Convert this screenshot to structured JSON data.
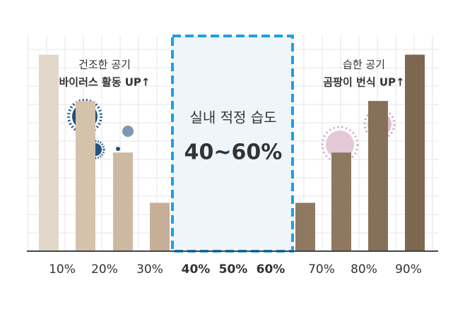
{
  "chart_data": {
    "type": "bar",
    "annotations": {
      "left": [
        "건조한 공기",
        "바이러스 활동 UP↑"
      ],
      "right": [
        "습한 공기",
        "곰팡이 번식 UP↑"
      ],
      "center_title": "실내 적정 습도",
      "center_value": "40~60%"
    },
    "x_labels": [
      "10%",
      "20%",
      "30%",
      "40%",
      "50%",
      "60%",
      "70%",
      "80%",
      "90%"
    ],
    "values": [
      148,
      113,
      74,
      36,
      36,
      74,
      113,
      148
    ],
    "colors": [
      "#e2d8ca",
      "#d4c2ad",
      "#cdb9a1",
      "#c6af96",
      "#8f7961",
      "#8e7860",
      "#86705a",
      "#7d6750"
    ],
    "ylim": [
      0,
      160
    ]
  }
}
